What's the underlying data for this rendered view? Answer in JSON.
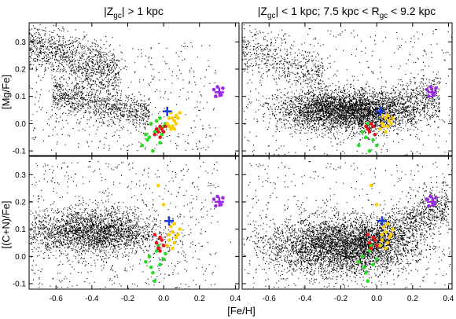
{
  "figure": {
    "titles": {
      "left": "|Z_gc| > 1 kpc",
      "right": "|Z_gc| < 1 kpc; 7.5 kpc < R_gc < 9.2 kpc"
    },
    "xlabel": "[Fe/H]"
  },
  "chart_data": [
    {
      "type": "scatter",
      "panel": "top-left",
      "title": "|Z_gc| > 1 kpc",
      "xlabel": "",
      "ylabel": "[Mg/Fe]",
      "xlim": [
        -0.75,
        0.42
      ],
      "ylim": [
        -0.12,
        0.37
      ],
      "xticks": [
        -0.6,
        -0.4,
        -0.2,
        0.0,
        0.2,
        0.4
      ],
      "yticks": [
        -0.1,
        0.0,
        0.1,
        0.2,
        0.3
      ],
      "xtick_labels_visible": false,
      "series": [
        {
          "color": "#000000",
          "marker": "dot",
          "values": [],
          "field_components": [
            {
              "kind": "band",
              "x": [
                -0.75,
                -0.25
              ],
              "y_at_x_start": 0.29,
              "y_at_x_end": 0.18,
              "spread": 0.045,
              "count": 1100
            },
            {
              "kind": "band",
              "x": [
                -0.62,
                -0.08
              ],
              "y_at_x_start": 0.11,
              "y_at_x_end": 0.03,
              "spread": 0.03,
              "count": 900
            },
            {
              "kind": "uniform",
              "x": [
                -0.75,
                0.3
              ],
              "y": [
                -0.1,
                0.3
              ],
              "count": 500
            }
          ]
        },
        {
          "color": "#22dd22",
          "marker": "dot",
          "values": [
            [
              -0.12,
              -0.08
            ],
            [
              -0.08,
              -0.05
            ],
            [
              -0.06,
              -0.1
            ],
            [
              -0.05,
              -0.03
            ],
            [
              -0.1,
              -0.04
            ],
            [
              -0.02,
              -0.07
            ],
            [
              -0.07,
              0.0
            ],
            [
              -0.03,
              -0.02
            ],
            [
              -0.04,
              0.01
            ],
            [
              -0.02,
              0.02
            ],
            [
              0.0,
              -0.01
            ],
            [
              -0.09,
              -0.06
            ],
            [
              -0.01,
              -0.04
            ],
            [
              0.01,
              0.0
            ]
          ]
        },
        {
          "color": "#e8141c",
          "marker": "dot",
          "values": [
            [
              -0.04,
              -0.02
            ],
            [
              -0.02,
              -0.01
            ],
            [
              -0.03,
              -0.03
            ],
            [
              -0.01,
              -0.02
            ],
            [
              0.0,
              -0.03
            ],
            [
              -0.05,
              -0.04
            ],
            [
              -0.02,
              -0.05
            ],
            [
              0.01,
              -0.01
            ]
          ]
        },
        {
          "color": "#ffcc00",
          "marker": "dot",
          "values": [
            [
              0.03,
              -0.01
            ],
            [
              0.05,
              0.02
            ],
            [
              0.07,
              0.03
            ],
            [
              0.02,
              0.0
            ],
            [
              0.04,
              -0.02
            ],
            [
              0.06,
              0.01
            ],
            [
              0.08,
              0.02
            ],
            [
              0.05,
              -0.01
            ],
            [
              0.03,
              0.02
            ],
            [
              0.09,
              0.04
            ],
            [
              0.06,
              -0.02
            ],
            [
              0.04,
              0.04
            ],
            [
              0.07,
              0.0
            ]
          ]
        },
        {
          "color": "#1f3fdd",
          "marker": "cross",
          "values": [
            [
              0.02,
              0.045
            ]
          ]
        },
        {
          "color": "#9a2be2",
          "marker": "cross",
          "values": [
            [
              0.31,
              0.115
            ]
          ]
        },
        {
          "color": "#9a2be2",
          "marker": "dot",
          "values": [
            [
              0.28,
              0.125
            ],
            [
              0.3,
              0.135
            ],
            [
              0.33,
              0.13
            ],
            [
              0.29,
              0.1
            ],
            [
              0.32,
              0.105
            ]
          ]
        }
      ]
    },
    {
      "type": "scatter",
      "panel": "top-right",
      "title": "|Z_gc| < 1 kpc; 7.5 kpc < R_gc < 9.2 kpc",
      "xlabel": "",
      "ylabel": "",
      "xlim": [
        -0.75,
        0.42
      ],
      "ylim": [
        -0.12,
        0.37
      ],
      "xticks": [
        -0.6,
        -0.4,
        -0.2,
        0.0,
        0.2,
        0.4
      ],
      "yticks": [
        -0.1,
        0.0,
        0.1,
        0.2,
        0.3
      ],
      "xtick_labels_visible": false,
      "series": [
        {
          "color": "#000000",
          "marker": "dot",
          "values": [],
          "field_components": [
            {
              "kind": "band",
              "x": [
                -0.75,
                -0.3
              ],
              "y_at_x_start": 0.27,
              "y_at_x_end": 0.18,
              "spread": 0.04,
              "count": 500
            },
            {
              "kind": "blob",
              "center": [
                -0.2,
                0.05
              ],
              "sx": 0.17,
              "sy": 0.035,
              "count": 3200
            },
            {
              "kind": "band",
              "x": [
                -0.1,
                0.35
              ],
              "y_at_x_start": 0.02,
              "y_at_x_end": 0.1,
              "spread": 0.04,
              "count": 1000
            },
            {
              "kind": "uniform",
              "x": [
                -0.75,
                0.42
              ],
              "y": [
                -0.12,
                0.35
              ],
              "count": 500
            }
          ]
        },
        {
          "color": "#22dd22",
          "marker": "dot",
          "values": [
            [
              -0.1,
              -0.08
            ],
            [
              -0.06,
              -0.05
            ],
            [
              -0.04,
              -0.1
            ],
            [
              -0.02,
              -0.06
            ],
            [
              -0.08,
              -0.03
            ],
            [
              0.0,
              -0.08
            ],
            [
              -0.05,
              0.0
            ]
          ]
        },
        {
          "color": "#e8141c",
          "marker": "dot",
          "values": [
            [
              -0.05,
              -0.02
            ],
            [
              -0.03,
              0.0
            ],
            [
              -0.04,
              -0.03
            ],
            [
              -0.02,
              -0.01
            ],
            [
              -0.01,
              -0.04
            ],
            [
              -0.06,
              -0.01
            ]
          ]
        },
        {
          "color": "#ffcc00",
          "marker": "dot",
          "values": [
            [
              0.03,
              0.0
            ],
            [
              0.05,
              0.02
            ],
            [
              0.07,
              0.01
            ],
            [
              0.02,
              -0.02
            ],
            [
              0.04,
              -0.01
            ],
            [
              0.06,
              0.03
            ],
            [
              0.08,
              0.0
            ],
            [
              0.05,
              -0.03
            ],
            [
              0.03,
              0.03
            ],
            [
              0.09,
              0.02
            ],
            [
              0.06,
              -0.01
            ]
          ]
        },
        {
          "color": "#1f3fdd",
          "marker": "cross",
          "values": [
            [
              0.02,
              0.045
            ]
          ]
        },
        {
          "color": "#9a2be2",
          "marker": "cross",
          "values": [
            [
              0.31,
              0.115
            ]
          ]
        },
        {
          "color": "#9a2be2",
          "marker": "dot",
          "values": [
            [
              0.28,
              0.125
            ],
            [
              0.3,
              0.135
            ],
            [
              0.33,
              0.13
            ],
            [
              0.29,
              0.1
            ],
            [
              0.32,
              0.105
            ]
          ]
        }
      ]
    },
    {
      "type": "scatter",
      "panel": "bottom-left",
      "title": "",
      "xlabel": "",
      "ylabel": "[(C+N)/Fe]",
      "xlim": [
        -0.75,
        0.42
      ],
      "ylim": [
        -0.12,
        0.37
      ],
      "xticks": [
        -0.6,
        -0.4,
        -0.2,
        0.0,
        0.2,
        0.4
      ],
      "yticks": [
        -0.1,
        0.0,
        0.1,
        0.2,
        0.3
      ],
      "xtick_labels_visible": true,
      "series": [
        {
          "color": "#000000",
          "marker": "dot",
          "values": [],
          "field_components": [
            {
              "kind": "blob",
              "center": [
                -0.4,
                0.09
              ],
              "sx": 0.18,
              "sy": 0.04,
              "count": 2400
            },
            {
              "kind": "uniform",
              "x": [
                -0.75,
                0.3
              ],
              "y": [
                -0.12,
                0.35
              ],
              "count": 700
            }
          ]
        },
        {
          "color": "#22dd22",
          "marker": "dot",
          "values": [
            [
              -0.1,
              -0.02
            ],
            [
              -0.06,
              -0.06
            ],
            [
              -0.04,
              0.02
            ],
            [
              -0.02,
              -0.03
            ],
            [
              -0.08,
              0.0
            ],
            [
              0.0,
              -0.01
            ],
            [
              -0.05,
              -0.09
            ],
            [
              -0.03,
              0.04
            ],
            [
              -0.07,
              -0.04
            ],
            [
              0.01,
              0.01
            ]
          ]
        },
        {
          "color": "#e8141c",
          "marker": "dot",
          "values": [
            [
              -0.04,
              0.05
            ],
            [
              -0.02,
              0.07
            ],
            [
              -0.03,
              0.03
            ],
            [
              -0.01,
              0.06
            ],
            [
              0.0,
              0.04
            ],
            [
              -0.05,
              0.08
            ],
            [
              -0.02,
              0.02
            ]
          ]
        },
        {
          "color": "#ffcc00",
          "marker": "dot",
          "values": [
            [
              0.03,
              0.06
            ],
            [
              0.05,
              0.09
            ],
            [
              0.07,
              0.07
            ],
            [
              0.02,
              0.04
            ],
            [
              0.04,
              0.11
            ],
            [
              0.06,
              0.05
            ],
            [
              0.08,
              0.08
            ],
            [
              0.05,
              0.03
            ],
            [
              0.03,
              0.08
            ],
            [
              0.09,
              0.1
            ],
            [
              -0.03,
              0.26
            ],
            [
              0.0,
              0.19
            ],
            [
              0.06,
              0.12
            ]
          ]
        },
        {
          "color": "#1f3fdd",
          "marker": "cross",
          "values": [
            [
              0.03,
              0.13
            ]
          ]
        },
        {
          "color": "#9a2be2",
          "marker": "cross",
          "values": [
            [
              0.31,
              0.2
            ]
          ]
        },
        {
          "color": "#9a2be2",
          "marker": "dot",
          "values": [
            [
              0.28,
              0.21
            ],
            [
              0.3,
              0.22
            ],
            [
              0.33,
              0.215
            ],
            [
              0.29,
              0.185
            ],
            [
              0.32,
              0.19
            ]
          ]
        }
      ]
    },
    {
      "type": "scatter",
      "panel": "bottom-right",
      "title": "",
      "xlabel": "[Fe/H]",
      "ylabel": "",
      "xlim": [
        -0.75,
        0.42
      ],
      "ylim": [
        -0.12,
        0.37
      ],
      "xticks": [
        -0.6,
        -0.4,
        -0.2,
        0.0,
        0.2,
        0.4
      ],
      "yticks": [
        -0.1,
        0.0,
        0.1,
        0.2,
        0.3
      ],
      "xtick_labels_visible": true,
      "series": [
        {
          "color": "#000000",
          "marker": "dot",
          "values": [],
          "field_components": [
            {
              "kind": "blob",
              "center": [
                -0.2,
                0.04
              ],
              "sx": 0.2,
              "sy": 0.05,
              "count": 4000
            },
            {
              "kind": "band",
              "x": [
                -0.1,
                0.4
              ],
              "y_at_x_start": 0.04,
              "y_at_x_end": 0.19,
              "spread": 0.04,
              "count": 1100
            },
            {
              "kind": "uniform",
              "x": [
                -0.75,
                0.42
              ],
              "y": [
                -0.12,
                0.35
              ],
              "count": 500
            }
          ]
        },
        {
          "color": "#22dd22",
          "marker": "dot",
          "values": [
            [
              -0.1,
              -0.02
            ],
            [
              -0.06,
              -0.06
            ],
            [
              -0.04,
              0.02
            ],
            [
              -0.02,
              -0.03
            ],
            [
              -0.08,
              0.0
            ],
            [
              0.0,
              -0.01
            ],
            [
              -0.05,
              -0.09
            ],
            [
              -0.03,
              0.04
            ],
            [
              -0.07,
              -0.04
            ]
          ]
        },
        {
          "color": "#e8141c",
          "marker": "dot",
          "values": [
            [
              -0.04,
              0.05
            ],
            [
              -0.02,
              0.07
            ],
            [
              -0.03,
              0.03
            ],
            [
              -0.01,
              0.06
            ],
            [
              0.0,
              0.04
            ],
            [
              -0.05,
              0.08
            ]
          ]
        },
        {
          "color": "#ffcc00",
          "marker": "dot",
          "values": [
            [
              0.03,
              0.06
            ],
            [
              0.05,
              0.09
            ],
            [
              0.07,
              0.07
            ],
            [
              0.02,
              0.04
            ],
            [
              0.04,
              0.11
            ],
            [
              0.06,
              0.05
            ],
            [
              0.08,
              0.08
            ],
            [
              0.05,
              0.03
            ],
            [
              0.03,
              0.08
            ],
            [
              0.09,
              0.1
            ],
            [
              -0.03,
              0.26
            ],
            [
              0.0,
              0.19
            ],
            [
              0.06,
              0.12
            ]
          ]
        },
        {
          "color": "#1f3fdd",
          "marker": "cross",
          "values": [
            [
              0.03,
              0.13
            ]
          ]
        },
        {
          "color": "#9a2be2",
          "marker": "cross",
          "values": [
            [
              0.31,
              0.2
            ]
          ]
        },
        {
          "color": "#9a2be2",
          "marker": "dot",
          "values": [
            [
              0.28,
              0.21
            ],
            [
              0.3,
              0.22
            ],
            [
              0.33,
              0.215
            ],
            [
              0.29,
              0.185
            ],
            [
              0.32,
              0.19
            ]
          ]
        }
      ]
    }
  ]
}
